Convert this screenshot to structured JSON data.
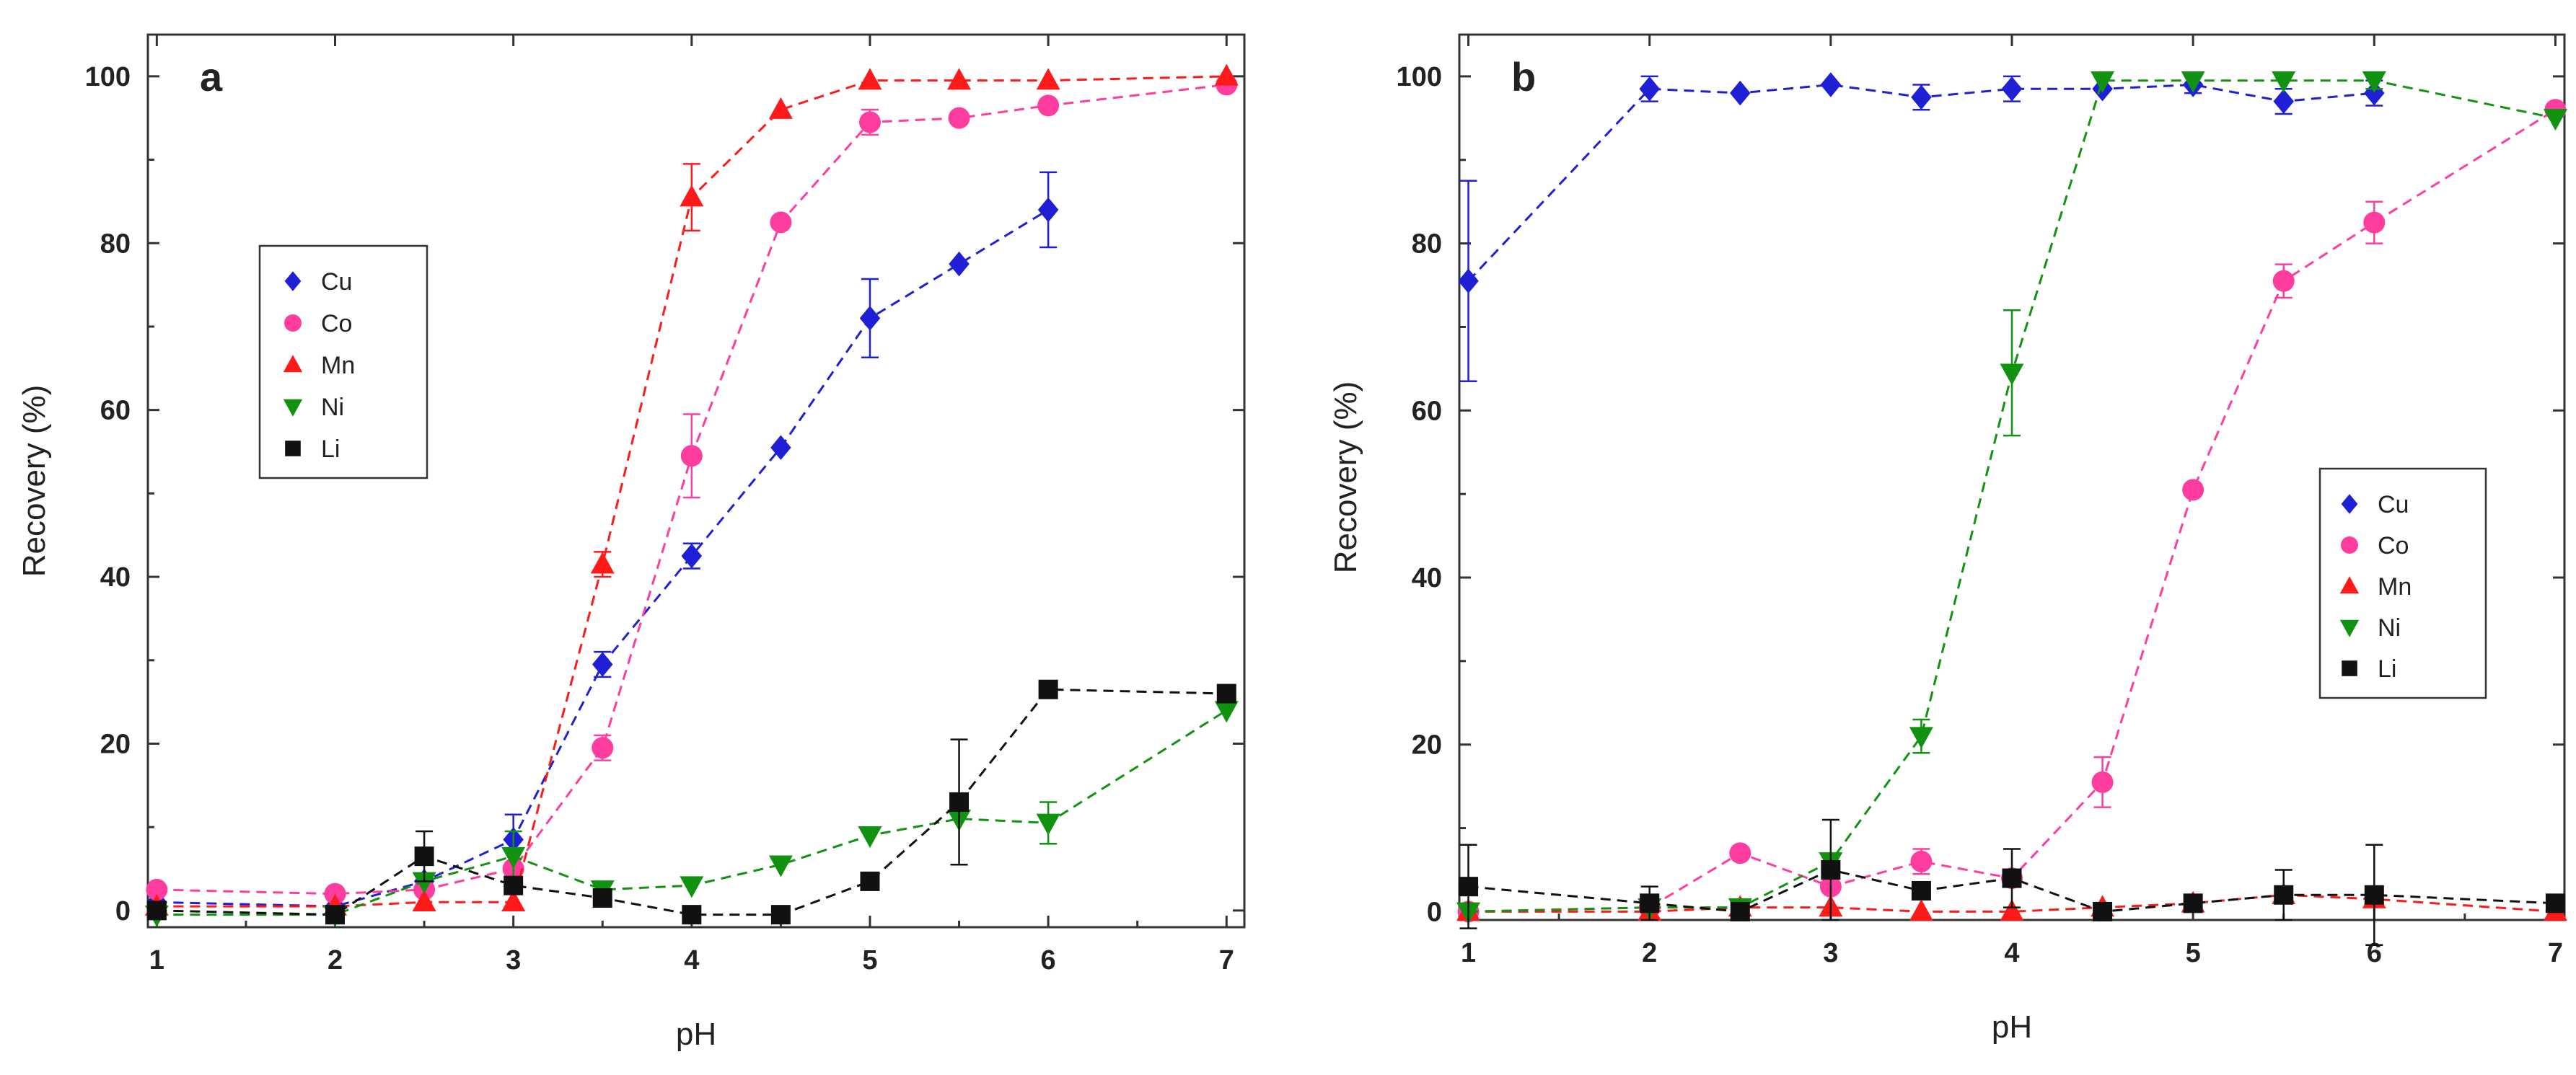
{
  "figure_title": "",
  "chart_data": [
    {
      "type": "scatter",
      "panel_label": "a",
      "xlabel": "pH",
      "ylabel": "Recovery (%)",
      "xlim": [
        0.95,
        7.1
      ],
      "ylim": [
        -2,
        105
      ],
      "xticks": [
        1,
        2,
        3,
        4,
        5,
        6,
        7
      ],
      "yticks": [
        0,
        20,
        40,
        60,
        80,
        100
      ],
      "legend_position": "center-left",
      "series": [
        {
          "name": "Cu",
          "marker": "diamond",
          "color": "#1f1fd6",
          "points": [
            [
              1,
              1
            ],
            [
              2,
              0.5
            ],
            [
              2.5,
              3.5
            ],
            [
              3,
              8.5
            ],
            [
              3.5,
              29.5
            ],
            [
              4,
              42.5
            ],
            [
              4.5,
              55.5
            ],
            [
              5,
              71
            ],
            [
              5.5,
              77.5
            ],
            [
              6,
              84
            ]
          ],
          "errors": [
            0,
            0,
            0,
            3,
            1.5,
            1.5,
            0,
            4.7,
            0,
            4.5
          ]
        },
        {
          "name": "Co",
          "marker": "circle",
          "color": "#ff3d9e",
          "points": [
            [
              1,
              2.5
            ],
            [
              2,
              2
            ],
            [
              2.5,
              2.5
            ],
            [
              3,
              5
            ],
            [
              3.5,
              19.5
            ],
            [
              4,
              54.5
            ],
            [
              4.5,
              82.5
            ],
            [
              5,
              94.5
            ],
            [
              5.5,
              95
            ],
            [
              6,
              96.5
            ],
            [
              7,
              99
            ]
          ],
          "errors": [
            0,
            0,
            0,
            0,
            1.5,
            5,
            0,
            1.5,
            0,
            0,
            0
          ]
        },
        {
          "name": "Mn",
          "marker": "triangle-up",
          "color": "#ff1a1a",
          "points": [
            [
              1,
              0.5
            ],
            [
              2,
              0.5
            ],
            [
              2.5,
              1
            ],
            [
              3,
              1
            ],
            [
              3.5,
              41.5
            ],
            [
              4,
              85.5
            ],
            [
              4.5,
              96
            ],
            [
              5,
              99.5
            ],
            [
              5.5,
              99.5
            ],
            [
              6,
              99.5
            ],
            [
              7,
              100
            ]
          ],
          "errors": [
            0,
            0,
            0,
            0,
            1.5,
            4,
            0,
            0,
            0,
            0,
            0
          ]
        },
        {
          "name": "Ni",
          "marker": "triangle-down",
          "color": "#119311",
          "points": [
            [
              1,
              -0.5
            ],
            [
              2,
              -0.5
            ],
            [
              2.5,
              3.5
            ],
            [
              3,
              6.5
            ],
            [
              3.5,
              2.5
            ],
            [
              4,
              3
            ],
            [
              4.5,
              5.5
            ],
            [
              5,
              9
            ],
            [
              5.5,
              11
            ],
            [
              6,
              10.5
            ],
            [
              7,
              24
            ]
          ],
          "errors": [
            0,
            0,
            0,
            3,
            0,
            0,
            0,
            0,
            0,
            2.5,
            0
          ]
        },
        {
          "name": "Li",
          "marker": "square",
          "color": "#111111",
          "points": [
            [
              1,
              0
            ],
            [
              2,
              -0.5
            ],
            [
              2.5,
              6.5
            ],
            [
              3,
              3
            ],
            [
              3.5,
              1.5
            ],
            [
              4,
              -0.5
            ],
            [
              4.5,
              -0.5
            ],
            [
              5,
              3.5
            ],
            [
              5.5,
              13
            ],
            [
              6,
              26.5
            ],
            [
              7,
              26
            ]
          ],
          "errors": [
            0,
            0,
            3,
            0,
            0,
            0,
            0,
            0,
            7.5,
            0,
            0
          ]
        }
      ]
    },
    {
      "type": "scatter",
      "panel_label": "b",
      "xlabel": "pH",
      "ylabel": "Recovery (%)",
      "xlim": [
        0.95,
        7.05
      ],
      "ylim": [
        -1,
        105
      ],
      "xticks": [
        1,
        2,
        3,
        4,
        5,
        6,
        7
      ],
      "yticks": [
        0,
        20,
        40,
        60,
        80,
        100
      ],
      "legend_position": "center-right",
      "series": [
        {
          "name": "Cu",
          "marker": "diamond",
          "color": "#1f1fd6",
          "points": [
            [
              1,
              75.5
            ],
            [
              2,
              98.5
            ],
            [
              2.5,
              98
            ],
            [
              3,
              99
            ],
            [
              3.5,
              97.5
            ],
            [
              4,
              98.5
            ],
            [
              4.5,
              98.5
            ],
            [
              5,
              99
            ],
            [
              5.5,
              97
            ],
            [
              6,
              98
            ]
          ],
          "errors": [
            12,
            1.5,
            0,
            0,
            1.5,
            1.5,
            0,
            1,
            1.5,
            1.5
          ]
        },
        {
          "name": "Co",
          "marker": "circle",
          "color": "#ff3d9e",
          "points": [
            [
              1,
              0
            ],
            [
              2,
              0.5
            ],
            [
              2.5,
              7
            ],
            [
              3,
              3
            ],
            [
              3.5,
              6
            ],
            [
              4,
              4
            ],
            [
              4.5,
              15.5
            ],
            [
              5,
              50.5
            ],
            [
              5.5,
              75.5
            ],
            [
              6,
              82.5
            ],
            [
              7,
              96
            ]
          ],
          "errors": [
            0,
            0,
            0,
            0,
            1.5,
            0,
            3,
            0,
            2,
            2.5,
            0
          ]
        },
        {
          "name": "Mn",
          "marker": "triangle-up",
          "color": "#ff1a1a",
          "points": [
            [
              1,
              0
            ],
            [
              2,
              0
            ],
            [
              2.5,
              0.5
            ],
            [
              3,
              0.5
            ],
            [
              3.5,
              0
            ],
            [
              4,
              0
            ],
            [
              4.5,
              0.5
            ],
            [
              5,
              1
            ],
            [
              5.5,
              2
            ],
            [
              6,
              1.5
            ],
            [
              7,
              0
            ]
          ],
          "errors": [
            0,
            0,
            0,
            0,
            0,
            0,
            0,
            0,
            0,
            0,
            0
          ]
        },
        {
          "name": "Ni",
          "marker": "triangle-down",
          "color": "#119311",
          "points": [
            [
              1,
              0
            ],
            [
              2,
              0.5
            ],
            [
              2.5,
              0.5
            ],
            [
              3,
              6
            ],
            [
              3.5,
              21
            ],
            [
              4,
              64.5
            ],
            [
              4.5,
              99.5
            ],
            [
              5,
              99.5
            ],
            [
              5.5,
              99.5
            ],
            [
              6,
              99.5
            ],
            [
              7,
              95
            ]
          ],
          "errors": [
            0,
            0,
            0,
            0,
            2,
            7.5,
            0,
            0,
            0,
            1,
            0
          ]
        },
        {
          "name": "Li",
          "marker": "square",
          "color": "#111111",
          "points": [
            [
              1,
              3
            ],
            [
              2,
              1
            ],
            [
              2.5,
              0
            ],
            [
              3,
              5
            ],
            [
              3.5,
              2.5
            ],
            [
              4,
              4
            ],
            [
              4.5,
              0
            ],
            [
              5,
              1
            ],
            [
              5.5,
              2
            ],
            [
              6,
              2
            ],
            [
              7,
              1
            ]
          ],
          "errors": [
            5,
            2,
            0,
            6,
            0,
            3.5,
            1,
            0,
            3,
            6,
            0
          ]
        }
      ]
    }
  ]
}
